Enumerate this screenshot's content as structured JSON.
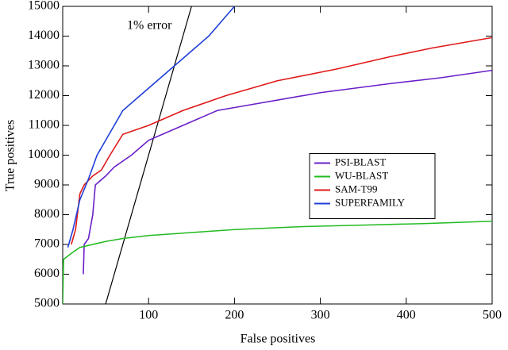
{
  "chart_data": {
    "type": "line",
    "x_label": "False positives",
    "y_label": "True positives",
    "xlim": [
      0,
      500
    ],
    "xticks": [
      100,
      200,
      300,
      400,
      500
    ],
    "ylim": [
      5000,
      15000
    ],
    "yticks": [
      5000,
      6000,
      7000,
      8000,
      9000,
      10000,
      11000,
      12000,
      13000,
      14000,
      15000
    ],
    "legend": "center right",
    "reference_line": {
      "label": "1% error",
      "color": "#000000",
      "x": [
        50,
        150
      ],
      "values": [
        5000,
        15000
      ]
    },
    "series": [
      {
        "name": "PSI-BLAST",
        "color": "#6a1fc8",
        "x": [
          24,
          25,
          30,
          35,
          38,
          50,
          60,
          80,
          100,
          140,
          180,
          220,
          300,
          380,
          440,
          500
        ],
        "values": [
          6000,
          7000,
          7200,
          8000,
          9000,
          9300,
          9600,
          10000,
          10500,
          11000,
          11500,
          11700,
          12100,
          12400,
          12600,
          12850
        ]
      },
      {
        "name": "WU-BLAST",
        "color": "#22bb22",
        "x": [
          0,
          1,
          10,
          20,
          50,
          70,
          100,
          150,
          200,
          280,
          350,
          420,
          500
        ],
        "values": [
          5000,
          6500,
          6700,
          6900,
          7100,
          7200,
          7300,
          7400,
          7500,
          7600,
          7650,
          7700,
          7780
        ]
      },
      {
        "name": "SAM-T99",
        "color": "#e01818",
        "x": [
          10,
          15,
          20,
          25,
          35,
          45,
          55,
          70,
          100,
          140,
          190,
          250,
          320,
          380,
          430,
          500
        ],
        "values": [
          7000,
          7500,
          8700,
          9000,
          9300,
          9500,
          10000,
          10700,
          11000,
          11500,
          12000,
          12500,
          12900,
          13300,
          13600,
          13950
        ]
      },
      {
        "name": "SUPERFAMILY",
        "color": "#1f3fd8",
        "x": [
          6,
          12,
          20,
          30,
          40,
          50,
          60,
          70,
          90,
          110,
          130,
          150,
          170,
          185,
          200
        ],
        "values": [
          6900,
          7500,
          8500,
          9200,
          10000,
          10500,
          11000,
          11500,
          12000,
          12500,
          13000,
          13500,
          14000,
          14500,
          15000
        ]
      }
    ]
  }
}
